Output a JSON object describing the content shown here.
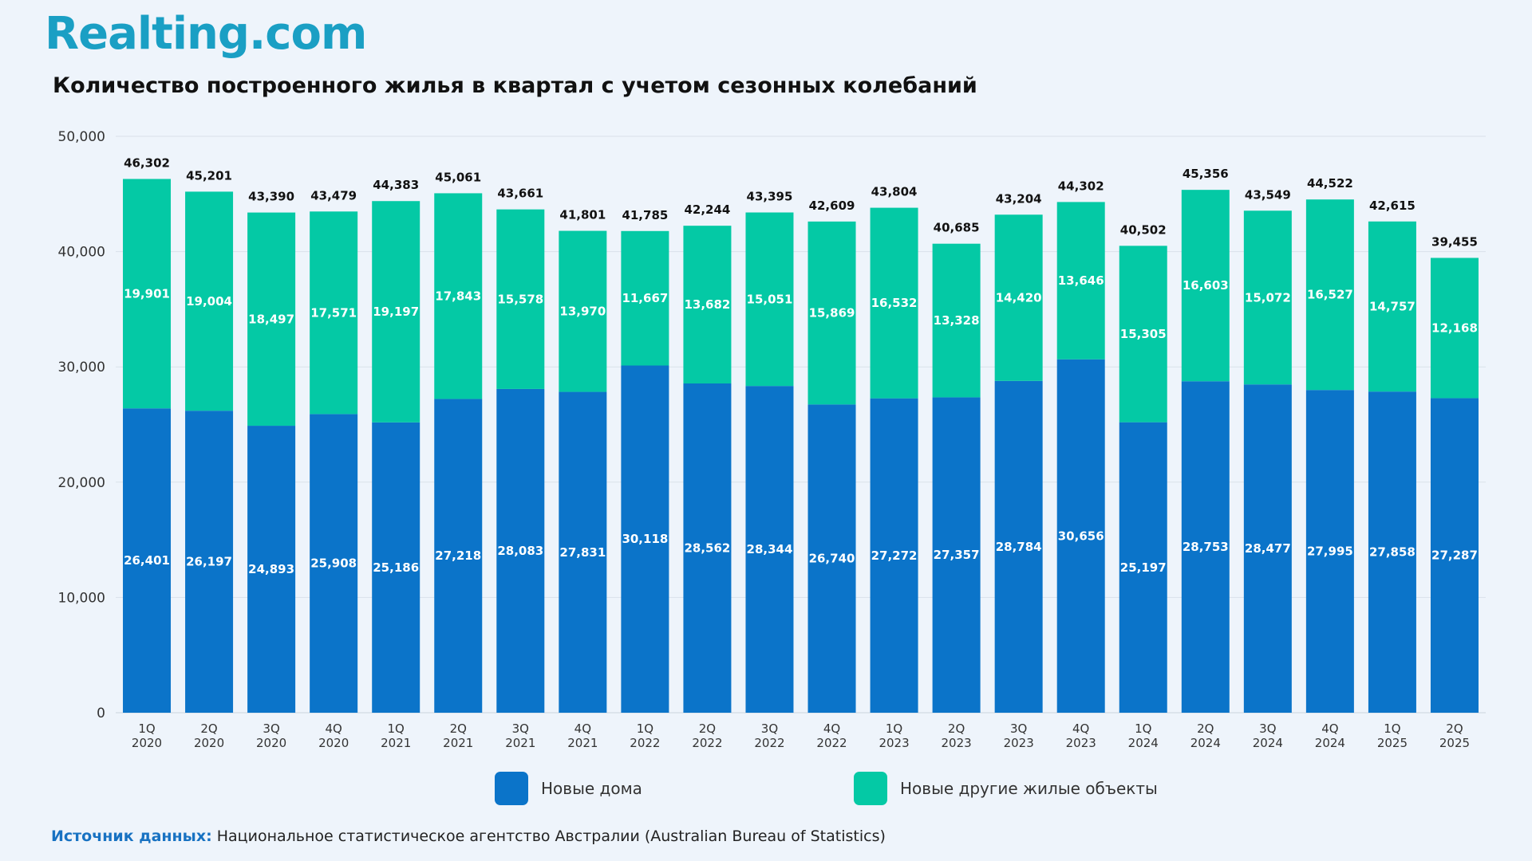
{
  "brand": {
    "logo_text": "Realting.com"
  },
  "header": {
    "title": "Количество построенного жилья в квартал с учетом сезонных колебаний"
  },
  "legend": {
    "items": [
      {
        "label": "Новые дома",
        "color": "#0b74c9"
      },
      {
        "label": "Новые другие жилые объекты",
        "color": "#04c9a5"
      }
    ]
  },
  "footer": {
    "source_label": "Источник данных:",
    "source_text": " Национальное статистическое агентство Австралии (Australian Bureau of Statistics)"
  },
  "chart_data": {
    "type": "bar",
    "stacked": true,
    "title": "Количество построенного жилья в квартал с учетом сезонных колебаний",
    "xlabel": "",
    "ylabel": "",
    "ylim": [
      0,
      50000
    ],
    "yticks": [
      0,
      10000,
      20000,
      30000,
      40000,
      50000
    ],
    "ytick_labels": [
      "0",
      "10,000",
      "20,000",
      "30,000",
      "40,000",
      "50,000"
    ],
    "grid": true,
    "legend_position": "bottom",
    "categories": [
      "1Q 2020",
      "2Q 2020",
      "3Q 2020",
      "4Q 2020",
      "1Q 2021",
      "2Q 2021",
      "3Q 2021",
      "4Q 2021",
      "1Q 2022",
      "2Q 2022",
      "3Q 2022",
      "4Q 2022",
      "1Q 2023",
      "2Q 2023",
      "3Q 2023",
      "4Q 2023",
      "1Q 2024",
      "2Q 2024",
      "3Q 2024",
      "4Q 2024",
      "1Q 2025",
      "2Q 2025"
    ],
    "category_lines": [
      [
        "1Q",
        "2020"
      ],
      [
        "2Q",
        "2020"
      ],
      [
        "3Q",
        "2020"
      ],
      [
        "4Q",
        "2020"
      ],
      [
        "1Q",
        "2021"
      ],
      [
        "2Q",
        "2021"
      ],
      [
        "3Q",
        "2021"
      ],
      [
        "4Q",
        "2021"
      ],
      [
        "1Q",
        "2022"
      ],
      [
        "2Q",
        "2022"
      ],
      [
        "3Q",
        "2022"
      ],
      [
        "4Q",
        "2022"
      ],
      [
        "1Q",
        "2023"
      ],
      [
        "2Q",
        "2023"
      ],
      [
        "3Q",
        "2023"
      ],
      [
        "4Q",
        "2023"
      ],
      [
        "1Q",
        "2024"
      ],
      [
        "2Q",
        "2024"
      ],
      [
        "3Q",
        "2024"
      ],
      [
        "4Q",
        "2024"
      ],
      [
        "1Q",
        "2025"
      ],
      [
        "2Q",
        "2025"
      ]
    ],
    "series": [
      {
        "name": "Новые дома",
        "color": "#0b74c9",
        "values": [
          26401,
          26197,
          24893,
          25908,
          25186,
          27218,
          28083,
          27831,
          30118,
          28562,
          28344,
          26740,
          27272,
          27357,
          28784,
          30656,
          25197,
          28753,
          28477,
          27995,
          27858,
          27287
        ],
        "labels": [
          "26,401",
          "26,197",
          "24,893",
          "25,908",
          "25,186",
          "27,218",
          "28,083",
          "27,831",
          "30,118",
          "28,562",
          "28,344",
          "26,740",
          "27,272",
          "27,357",
          "28,784",
          "30,656",
          "25,197",
          "28,753",
          "28,477",
          "27,995",
          "27,858",
          "27,287"
        ]
      },
      {
        "name": "Новые другие жилые объекты",
        "color": "#04c9a5",
        "values": [
          19901,
          19004,
          18497,
          17571,
          19197,
          17843,
          15578,
          13970,
          11667,
          13682,
          15051,
          15869,
          16532,
          13328,
          14420,
          13646,
          15305,
          16603,
          15072,
          16527,
          14757,
          12168
        ],
        "labels": [
          "19,901",
          "19,004",
          "18,497",
          "17,571",
          "19,197",
          "17,843",
          "15,578",
          "13,970",
          "11,667",
          "13,682",
          "15,051",
          "15,869",
          "16,532",
          "13,328",
          "14,420",
          "13,646",
          "15,305",
          "16,603",
          "15,072",
          "16,527",
          "14,757",
          "12,168"
        ]
      }
    ],
    "totals": [
      46302,
      45201,
      43390,
      43479,
      44383,
      45061,
      43661,
      41801,
      41785,
      42244,
      43395,
      42609,
      43804,
      40685,
      43204,
      44302,
      40502,
      45356,
      43549,
      44522,
      42615,
      39455
    ],
    "total_labels": [
      "46,302",
      "45,201",
      "43,390",
      "43,479",
      "44,383",
      "45,061",
      "43,661",
      "41,801",
      "41,785",
      "42,244",
      "43,395",
      "42,609",
      "43,804",
      "40,685",
      "43,204",
      "44,302",
      "40,502",
      "45,356",
      "43,549",
      "44,522",
      "42,615",
      "39,455"
    ]
  }
}
